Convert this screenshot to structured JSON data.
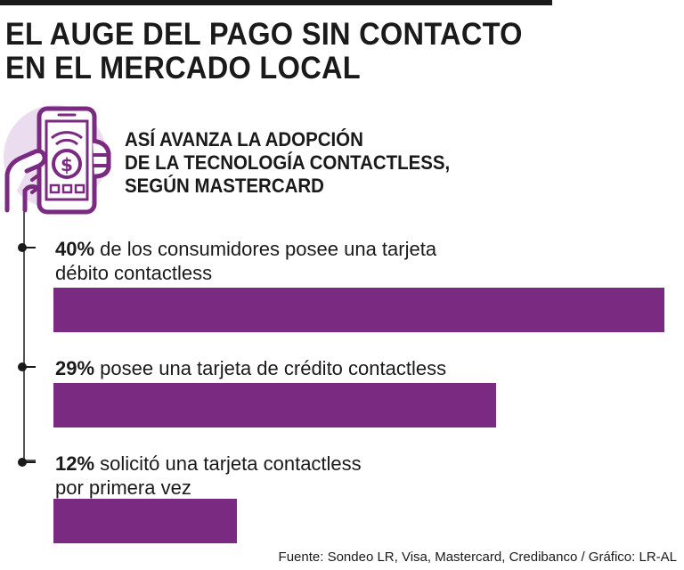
{
  "title": {
    "line1": "EL AUGE DEL PAGO SIN CONTACTO",
    "line2": "EN EL MERCADO LOCAL"
  },
  "subtitle": {
    "line1": "ASÍ AVANZA LA ADOPCIÓN",
    "line2": "DE LA TECNOLOGÍA CONTACTLESS,",
    "line3": "SEGÚN MASTERCARD"
  },
  "icon": "phone-payment-hand-icon",
  "chart_data": {
    "type": "bar",
    "orientation": "horizontal",
    "unit": "%",
    "categories": [
      "de los consumidores posee una tarjeta débito contactless",
      "posee una tarjeta de crédito contactless",
      "solicitó una tarjeta contactless por primera vez"
    ],
    "values": [
      40,
      29,
      12
    ],
    "value_labels": [
      "40%",
      "29%",
      "12%"
    ],
    "label_lines": [
      [
        "de los consumidores posee una tarjeta",
        "débito contactless"
      ],
      [
        "posee una tarjeta de crédito contactless"
      ],
      [
        "solicitó una tarjeta contactless",
        "por primera vez"
      ]
    ],
    "xlim": [
      0,
      40
    ],
    "grid": false
  },
  "source": "Fuente: Sondeo LR, Visa, Mastercard, Credibanco / Gráfico: LR-AL",
  "colors": {
    "bar": "#7b2a82",
    "icon_purple": "#7b2a82",
    "icon_circle": "#ecdcef",
    "text": "#1a1a1a"
  }
}
